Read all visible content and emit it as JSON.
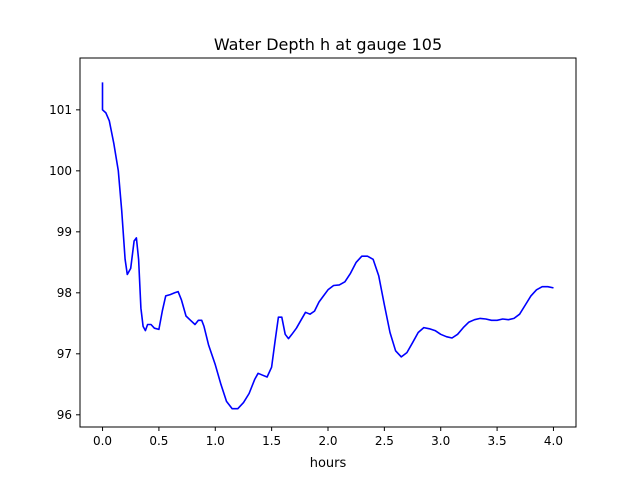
{
  "chart_data": {
    "type": "line",
    "title": "Water Depth h at gauge 105",
    "xlabel": "hours",
    "ylabel": "",
    "xlim": [
      -0.2,
      4.2
    ],
    "ylim": [
      95.8,
      101.85
    ],
    "xticks": [
      0.0,
      0.5,
      1.0,
      1.5,
      2.0,
      2.5,
      3.0,
      3.5,
      4.0
    ],
    "xtick_labels": [
      "0.0",
      "0.5",
      "1.0",
      "1.5",
      "2.0",
      "2.5",
      "3.0",
      "3.5",
      "4.0"
    ],
    "yticks": [
      96,
      97,
      98,
      99,
      100,
      101
    ],
    "ytick_labels": [
      "96",
      "97",
      "98",
      "99",
      "100",
      "101"
    ],
    "grid": false,
    "series": [
      {
        "color": "#0000ff",
        "x": [
          0.0,
          0.0,
          0.03,
          0.06,
          0.1,
          0.14,
          0.17,
          0.2,
          0.22,
          0.25,
          0.28,
          0.3,
          0.32,
          0.34,
          0.36,
          0.38,
          0.4,
          0.43,
          0.46,
          0.5,
          0.53,
          0.56,
          0.6,
          0.64,
          0.67,
          0.7,
          0.74,
          0.78,
          0.82,
          0.85,
          0.88,
          0.9,
          0.94,
          1.0,
          1.05,
          1.1,
          1.15,
          1.2,
          1.25,
          1.3,
          1.35,
          1.38,
          1.42,
          1.46,
          1.5,
          1.53,
          1.56,
          1.59,
          1.62,
          1.65,
          1.68,
          1.72,
          1.76,
          1.8,
          1.84,
          1.88,
          1.92,
          1.96,
          2.0,
          2.05,
          2.1,
          2.15,
          2.2,
          2.25,
          2.3,
          2.35,
          2.4,
          2.45,
          2.5,
          2.55,
          2.6,
          2.65,
          2.7,
          2.75,
          2.8,
          2.85,
          2.9,
          2.95,
          3.0,
          3.05,
          3.1,
          3.15,
          3.2,
          3.25,
          3.3,
          3.35,
          3.4,
          3.45,
          3.5,
          3.55,
          3.6,
          3.65,
          3.7,
          3.75,
          3.8,
          3.85,
          3.9,
          3.95,
          4.0
        ],
        "y": [
          101.45,
          101.0,
          100.95,
          100.82,
          100.45,
          100.0,
          99.35,
          98.55,
          98.3,
          98.4,
          98.85,
          98.9,
          98.55,
          97.75,
          97.45,
          97.38,
          97.48,
          97.48,
          97.42,
          97.4,
          97.7,
          97.95,
          97.97,
          98.0,
          98.02,
          97.88,
          97.62,
          97.55,
          97.48,
          97.55,
          97.55,
          97.45,
          97.15,
          96.82,
          96.5,
          96.22,
          96.1,
          96.1,
          96.2,
          96.35,
          96.58,
          96.68,
          96.65,
          96.62,
          96.78,
          97.2,
          97.6,
          97.6,
          97.32,
          97.25,
          97.32,
          97.42,
          97.55,
          97.68,
          97.65,
          97.7,
          97.85,
          97.95,
          98.05,
          98.12,
          98.13,
          98.18,
          98.32,
          98.5,
          98.6,
          98.6,
          98.55,
          98.28,
          97.8,
          97.35,
          97.05,
          96.95,
          97.02,
          97.18,
          97.35,
          97.43,
          97.41,
          97.38,
          97.32,
          97.28,
          97.26,
          97.32,
          97.43,
          97.52,
          97.56,
          97.58,
          97.57,
          97.55,
          97.55,
          97.57,
          97.56,
          97.58,
          97.65,
          97.8,
          97.95,
          98.05,
          98.1,
          98.1,
          98.08
        ]
      }
    ]
  }
}
